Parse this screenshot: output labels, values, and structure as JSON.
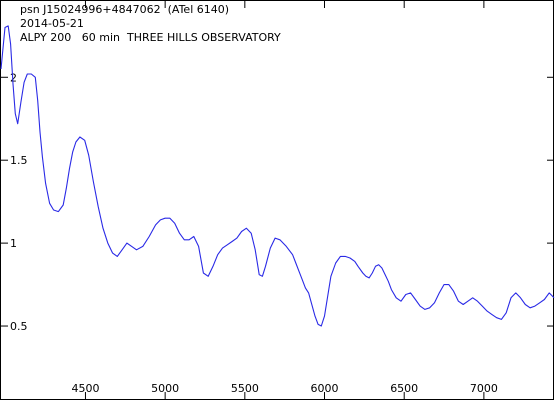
{
  "chart_data": {
    "type": "line",
    "title_lines": [
      "psn J15024996+4847062  (ATel 6140)",
      "2014-05-21",
      "ALPY 200   60 min  THREE HILLS OBSERVATORY"
    ],
    "xlabel": "",
    "ylabel": "",
    "xlim": [
      3970,
      7440
    ],
    "ylim": [
      0.06,
      2.46
    ],
    "xticks": [
      4500,
      5000,
      5500,
      6000,
      6500,
      7000
    ],
    "yticks": [
      0.5,
      1,
      1.5,
      2
    ],
    "xtick_labels": [
      "4500",
      "5000",
      "5500",
      "6000",
      "6500",
      "7000"
    ],
    "ytick_labels": [
      "0.5",
      "1",
      "1.5",
      "2"
    ],
    "grid": false,
    "line_color": "#2a2ae6",
    "series": [
      {
        "x": [
          3970,
          3995,
          4015,
          4030,
          4045,
          4060,
          4075,
          4095,
          4115,
          4135,
          4160,
          4185,
          4200,
          4215,
          4230,
          4250,
          4275,
          4300,
          4330,
          4360,
          4380,
          4400,
          4420,
          4440,
          4465,
          4495,
          4520,
          4550,
          4580,
          4610,
          4640,
          4670,
          4700,
          4730,
          4760,
          4790,
          4820,
          4860,
          4900,
          4940,
          4970,
          5000,
          5030,
          5060,
          5090,
          5120,
          5150,
          5180,
          5210,
          5240,
          5270,
          5300,
          5330,
          5360,
          5390,
          5420,
          5450,
          5480,
          5510,
          5540,
          5565,
          5590,
          5610,
          5630,
          5660,
          5690,
          5720,
          5760,
          5800,
          5820,
          5840,
          5860,
          5880,
          5900,
          5920,
          5940,
          5960,
          5980,
          6000,
          6020,
          6040,
          6070,
          6100,
          6130,
          6160,
          6190,
          6210,
          6240,
          6260,
          6280,
          6300,
          6320,
          6340,
          6360,
          6380,
          6400,
          6420,
          6450,
          6480,
          6510,
          6540,
          6570,
          6600,
          6630,
          6660,
          6690,
          6720,
          6750,
          6780,
          6810,
          6840,
          6870,
          6900,
          6930,
          6960,
          6990,
          7020,
          7050,
          7080,
          7110,
          7140,
          7170,
          7200,
          7230,
          7260,
          7290,
          7320,
          7350,
          7380,
          7410,
          7440
        ],
        "y": [
          2.05,
          2.3,
          2.31,
          2.2,
          1.96,
          1.78,
          1.72,
          1.85,
          1.97,
          2.02,
          2.02,
          2.0,
          1.86,
          1.67,
          1.52,
          1.36,
          1.24,
          1.2,
          1.19,
          1.23,
          1.33,
          1.45,
          1.55,
          1.61,
          1.64,
          1.62,
          1.53,
          1.37,
          1.22,
          1.09,
          1.0,
          0.94,
          0.92,
          0.96,
          1.0,
          0.98,
          0.96,
          0.98,
          1.04,
          1.11,
          1.14,
          1.15,
          1.15,
          1.12,
          1.06,
          1.02,
          1.02,
          1.04,
          0.98,
          0.82,
          0.8,
          0.86,
          0.93,
          0.97,
          0.99,
          1.01,
          1.03,
          1.07,
          1.09,
          1.06,
          0.96,
          0.81,
          0.8,
          0.86,
          0.97,
          1.03,
          1.02,
          0.98,
          0.93,
          0.88,
          0.83,
          0.78,
          0.73,
          0.7,
          0.63,
          0.56,
          0.51,
          0.5,
          0.56,
          0.68,
          0.8,
          0.88,
          0.92,
          0.92,
          0.91,
          0.89,
          0.86,
          0.82,
          0.8,
          0.79,
          0.82,
          0.86,
          0.87,
          0.85,
          0.81,
          0.77,
          0.72,
          0.67,
          0.65,
          0.69,
          0.7,
          0.66,
          0.62,
          0.6,
          0.61,
          0.64,
          0.7,
          0.75,
          0.75,
          0.71,
          0.65,
          0.63,
          0.65,
          0.67,
          0.65,
          0.62,
          0.59,
          0.57,
          0.55,
          0.54,
          0.58,
          0.67,
          0.7,
          0.67,
          0.63,
          0.61,
          0.62,
          0.64,
          0.66,
          0.7,
          0.67
        ]
      }
    ]
  }
}
